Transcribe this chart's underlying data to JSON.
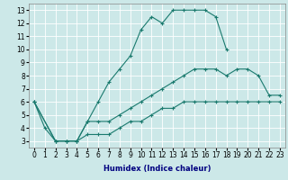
{
  "xlabel": "Humidex (Indice chaleur)",
  "bg_color": "#cce8e8",
  "line_color": "#1a7a6e",
  "grid_color": "#ffffff",
  "xlim": [
    -0.5,
    23.5
  ],
  "ylim": [
    2.5,
    13.5
  ],
  "xticks": [
    0,
    1,
    2,
    3,
    4,
    5,
    6,
    7,
    8,
    9,
    10,
    11,
    12,
    13,
    14,
    15,
    16,
    17,
    18,
    19,
    20,
    21,
    22,
    23
  ],
  "yticks": [
    3,
    4,
    5,
    6,
    7,
    8,
    9,
    10,
    11,
    12,
    13
  ],
  "line1_x": [
    0,
    1,
    2,
    3,
    4,
    5,
    6,
    7,
    8,
    9,
    10,
    11,
    12,
    13,
    14,
    15,
    16,
    17,
    18
  ],
  "line1_y": [
    6,
    4,
    3,
    3,
    3,
    4.5,
    6,
    7.5,
    8.5,
    9.5,
    11.5,
    12.5,
    12,
    13,
    13,
    13,
    13,
    12.5,
    10
  ],
  "line2_x": [
    0,
    2,
    3,
    4,
    5,
    6,
    7,
    8,
    9,
    10,
    11,
    12,
    13,
    14,
    15,
    16,
    17,
    18,
    19,
    20,
    21,
    22,
    23
  ],
  "line2_y": [
    6,
    3,
    3,
    3,
    4.5,
    4.5,
    4.5,
    5,
    5.5,
    6,
    6.5,
    7,
    7.5,
    8,
    8.5,
    8.5,
    8.5,
    8,
    8.5,
    8.5,
    8,
    6.5,
    6.5
  ],
  "line3_x": [
    0,
    2,
    3,
    4,
    5,
    6,
    7,
    8,
    9,
    10,
    11,
    12,
    13,
    14,
    15,
    16,
    17,
    18,
    19,
    20,
    21,
    22,
    23
  ],
  "line3_y": [
    6,
    3,
    3,
    3,
    3.5,
    3.5,
    3.5,
    4,
    4.5,
    4.5,
    5,
    5.5,
    5.5,
    6,
    6,
    6,
    6,
    6,
    6,
    6,
    6,
    6,
    6
  ],
  "tick_fontsize": 5.5,
  "xlabel_fontsize": 6,
  "marker_size": 3,
  "linewidth": 0.8
}
